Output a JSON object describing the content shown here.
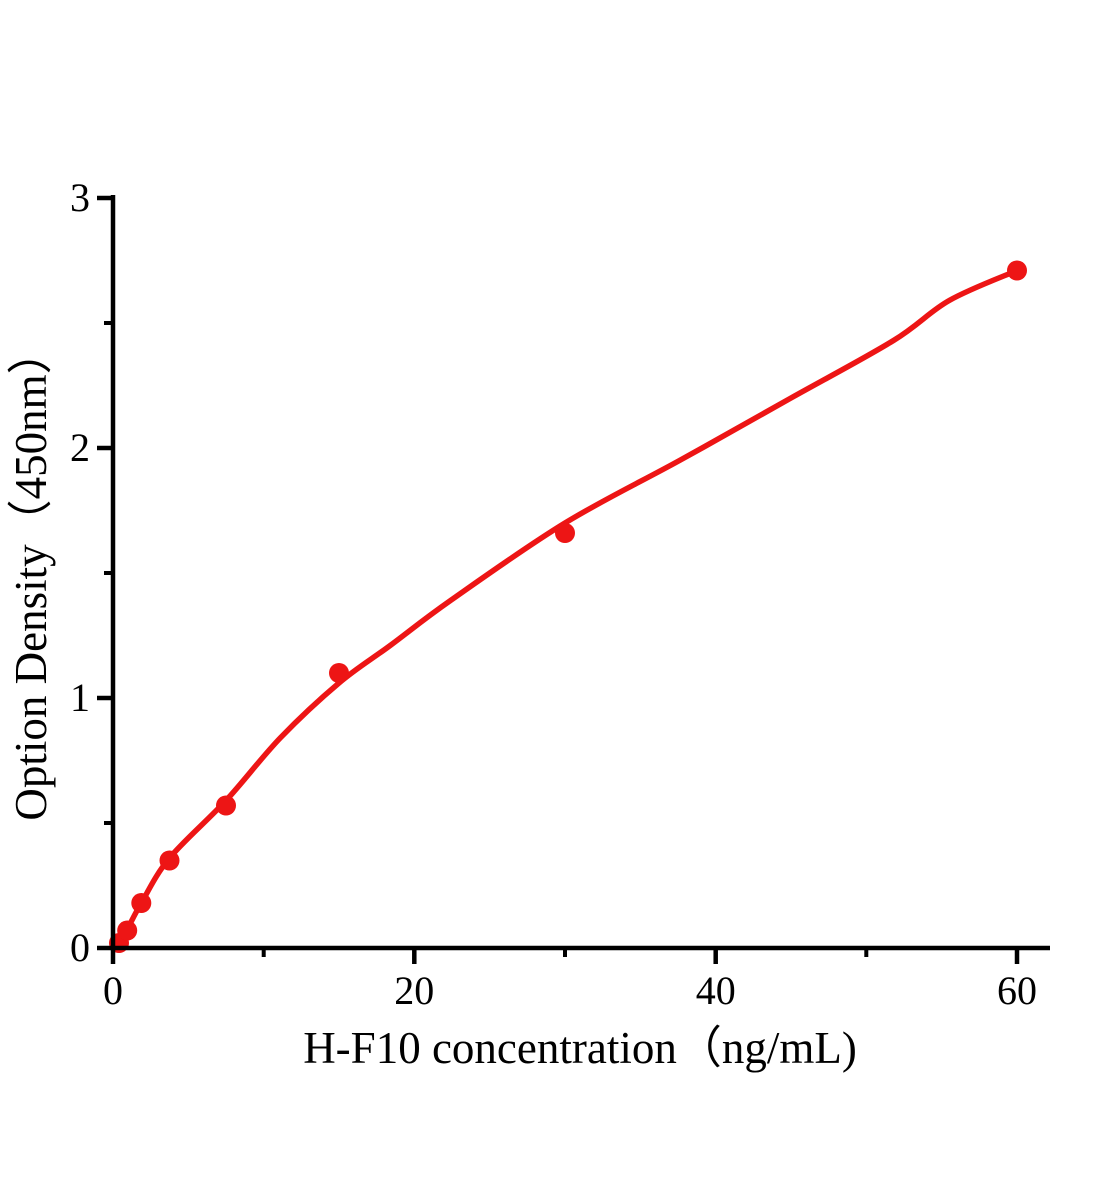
{
  "figure": {
    "background": "#ffffff"
  },
  "chart_data": {
    "type": "scatter",
    "title": "",
    "xlabel": "H-F10 concentration（ng/mL)",
    "ylabel": "Option Density（450nm）",
    "xlim": [
      0,
      62.2
    ],
    "ylim": [
      0,
      3.01
    ],
    "grid": false,
    "legend_position": "none",
    "axis_color": "#000000",
    "series_color": "#ed1515",
    "x_ticks": {
      "major": [
        0,
        20,
        40,
        60
      ],
      "minor": [
        10,
        30,
        50
      ]
    },
    "y_ticks": {
      "major": [
        0,
        1,
        2,
        3
      ],
      "minor": [
        0.5,
        1.5,
        2.5
      ]
    },
    "points": [
      [
        0.4,
        0.02
      ],
      [
        0.94,
        0.07
      ],
      [
        1.88,
        0.18
      ],
      [
        3.75,
        0.35
      ],
      [
        7.5,
        0.57
      ],
      [
        15,
        1.1
      ],
      [
        30,
        1.66
      ],
      [
        60,
        2.71
      ]
    ],
    "fit_curve": [
      [
        0.3,
        0.01
      ],
      [
        0.94,
        0.075
      ],
      [
        1.88,
        0.18
      ],
      [
        3.75,
        0.36
      ],
      [
        7.5,
        0.59
      ],
      [
        11.1,
        0.84
      ],
      [
        15,
        1.06
      ],
      [
        18.4,
        1.21
      ],
      [
        22.4,
        1.39
      ],
      [
        30,
        1.7
      ],
      [
        37.6,
        1.95
      ],
      [
        45,
        2.2
      ],
      [
        51.8,
        2.43
      ],
      [
        55.5,
        2.59
      ],
      [
        60,
        2.71
      ]
    ]
  }
}
